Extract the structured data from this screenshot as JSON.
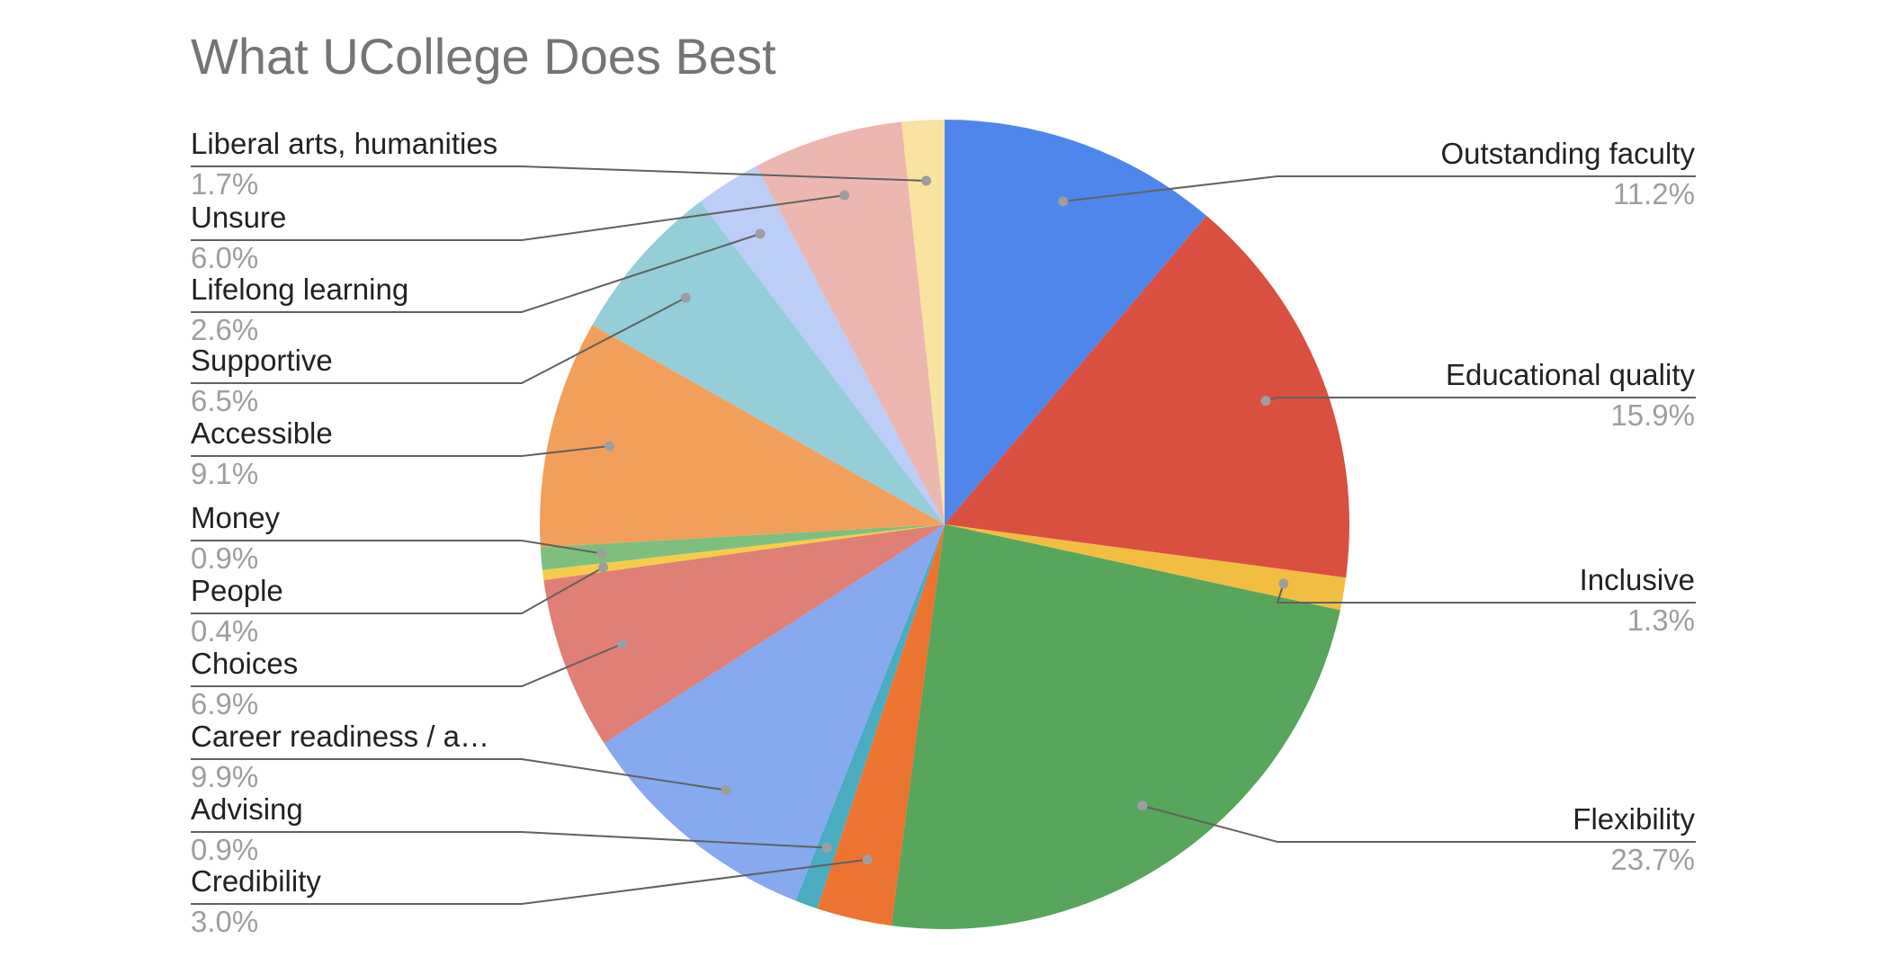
{
  "chart_data": {
    "type": "pie",
    "title": "What UCollege Does Best",
    "legend": "labels-with-leader-lines",
    "slices": [
      {
        "label": "Outstanding faculty",
        "percent_label": "11.2%",
        "value": 11.2,
        "color": "#4f86ec"
      },
      {
        "label": "Educational quality",
        "percent_label": "15.9%",
        "value": 15.9,
        "color": "#d95040"
      },
      {
        "label": "Inclusive",
        "percent_label": "1.3%",
        "value": 1.3,
        "color": "#f2be42"
      },
      {
        "label": "Flexibility",
        "percent_label": "23.7%",
        "value": 23.7,
        "color": "#58a55c"
      },
      {
        "label": "Credibility",
        "percent_label": "3.0%",
        "value": 3.0,
        "color": "#ec7431"
      },
      {
        "label": "Advising",
        "percent_label": "0.9%",
        "value": 0.9,
        "color": "#4aacc1"
      },
      {
        "label": "Career readiness / a…",
        "percent_label": "9.9%",
        "value": 9.9,
        "color": "#86a9f0"
      },
      {
        "label": "Choices",
        "percent_label": "6.9%",
        "value": 6.9,
        "color": "#e07f76"
      },
      {
        "label": "People",
        "percent_label": "0.4%",
        "value": 0.4,
        "color": "#f5cd4a"
      },
      {
        "label": "Money",
        "percent_label": "0.9%",
        "value": 0.9,
        "color": "#7ebf7f"
      },
      {
        "label": "Accessible",
        "percent_label": "9.1%",
        "value": 9.1,
        "color": "#f29f5b"
      },
      {
        "label": "Supportive",
        "percent_label": "6.5%",
        "value": 6.5,
        "color": "#95ced8"
      },
      {
        "label": "Lifelong learning",
        "percent_label": "2.6%",
        "value": 2.6,
        "color": "#bccdf8"
      },
      {
        "label": "Unsure",
        "percent_label": "6.0%",
        "value": 6.0,
        "color": "#ecb7b1"
      },
      {
        "label": "Liberal arts, humanities",
        "percent_label": "1.7%",
        "value": 1.7,
        "color": "#f9e3a0"
      }
    ]
  }
}
